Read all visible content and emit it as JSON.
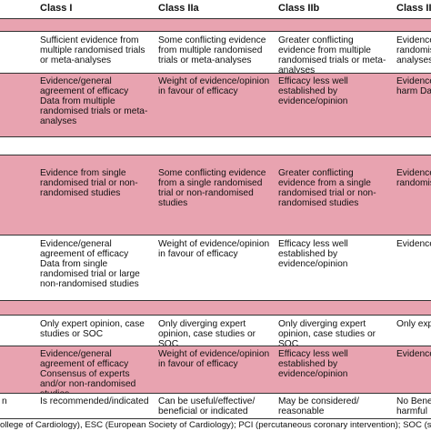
{
  "table": {
    "header": [
      "Class I",
      "Class IIa",
      "Class IIb",
      "Class III"
    ],
    "rows": [
      {
        "cells": [
          null,
          "Sufficient evidence from multiple randomised trials or meta-analyses",
          "Some conflicting evidence from multiple randomised trials or meta-analyses",
          "Greater conflicting evidence from multiple randomised trials or meta-analyses",
          "Evidence from multiple randomised trials or meta-analyses"
        ]
      },
      {
        "cells": [
          null,
          [
            "Evidence/general agreement of efficacy",
            "Data from multiple randomised trials or meta-analyses"
          ],
          "Weight of evidence/opinion in favour of efficacy",
          "Efficacy less well established by evidence/opinion",
          "Evidence or non-efficacy or harm Data from multiple"
        ]
      },
      {
        "cells": [
          null,
          "Evidence from single randomised trial or non-randomised studies",
          "Some conflicting evidence from a single randomised trial or non-randomised studies",
          "Greater conflicting evidence from a single randomised trial or non-randomised studies",
          "Evidence from single randomised trial"
        ]
      },
      {
        "cells": [
          null,
          [
            "Evidence/general agreement of efficacy",
            "Data from single randomised trial or large non-randomised studies"
          ],
          "Weight of evidence/opinion in favour of efficacy",
          "Efficacy less well established by evidence/opinion",
          "Evidence or non-efficacy"
        ]
      },
      {
        "cells": [
          null,
          "Only expert opinion, case studies or SOC",
          "Only diverging expert opinion, case studies or SOC",
          "Only diverging expert opinion, case studies or SOC",
          "Only expert opinion"
        ]
      },
      {
        "cells": [
          null,
          [
            "Evidence/general agreement of efficacy",
            "Consensus of experts and/or non-randomised studies"
          ],
          "Weight of evidence/opinion in favour of efficacy",
          "Efficacy less well established by evidence/opinion",
          "Evidence or non-efficacy"
        ]
      },
      {
        "cells": [
          "n",
          "Is recommended/indicated",
          "Can be useful/effective/ beneficial or indicated",
          "May be considered/ reasonable",
          "No Benefit or potentially harmful"
        ]
      }
    ],
    "footnote": "ollege of Cardiology), ESC (European Society of Cardiology); PCI (percutaneous coronary intervention); SOC (standard of care)"
  }
}
